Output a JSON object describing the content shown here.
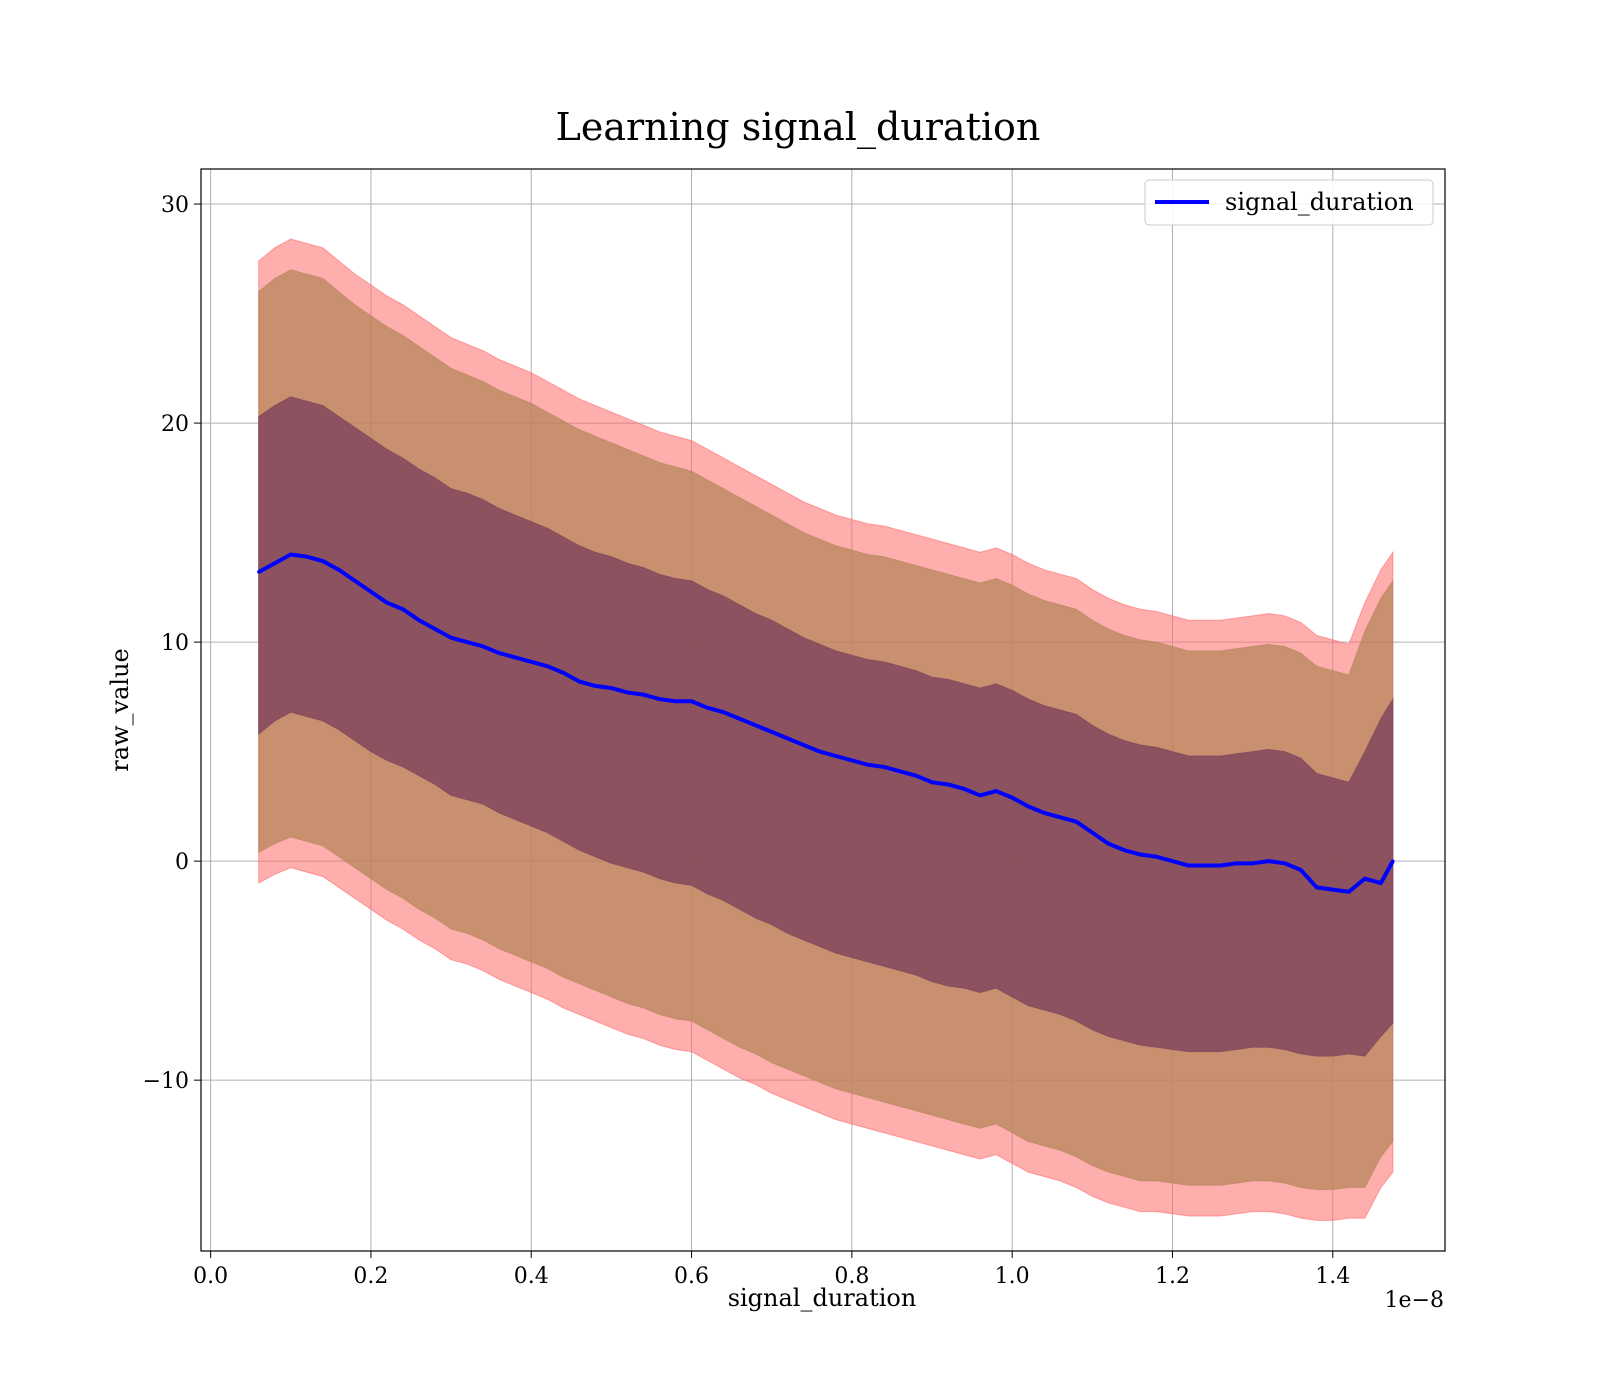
{
  "chart_data": {
    "type": "line",
    "title": "Learning signal_duration",
    "xlabel": "signal_duration",
    "ylabel": "raw_value",
    "x_offset_text": "1e−8",
    "xlim": [
      -0.012,
      1.54
    ],
    "ylim": [
      -17.8,
      31.6
    ],
    "xticks": [
      0.0,
      0.2,
      0.4,
      0.6,
      0.8,
      1.0,
      1.2,
      1.4
    ],
    "xtick_labels": [
      "0.0",
      "0.2",
      "0.4",
      "0.6",
      "0.8",
      "1.0",
      "1.2",
      "1.4"
    ],
    "yticks": [
      -10,
      0,
      10,
      20,
      30
    ],
    "ytick_labels": [
      "−10",
      "0",
      "10",
      "20",
      "30"
    ],
    "grid": true,
    "legend": {
      "location": "upper right",
      "entries": [
        "signal_duration"
      ]
    },
    "colors": {
      "mean_line": "#0000ff",
      "band_outer": "#ff6b6b",
      "band_middle": "#b5865a",
      "band_inner": "#7a3d5a",
      "grid": "#b0b0b0"
    },
    "series": [
      {
        "name": "signal_duration",
        "x": [
          0.06,
          0.08,
          0.1,
          0.12,
          0.14,
          0.16,
          0.18,
          0.2,
          0.22,
          0.24,
          0.26,
          0.28,
          0.3,
          0.32,
          0.34,
          0.36,
          0.38,
          0.4,
          0.42,
          0.44,
          0.46,
          0.48,
          0.5,
          0.52,
          0.54,
          0.56,
          0.58,
          0.6,
          0.62,
          0.64,
          0.66,
          0.68,
          0.7,
          0.72,
          0.74,
          0.76,
          0.78,
          0.8,
          0.82,
          0.84,
          0.86,
          0.88,
          0.9,
          0.92,
          0.94,
          0.96,
          0.98,
          1.0,
          1.02,
          1.04,
          1.06,
          1.08,
          1.1,
          1.12,
          1.14,
          1.16,
          1.18,
          1.2,
          1.22,
          1.24,
          1.26,
          1.28,
          1.3,
          1.32,
          1.34,
          1.36,
          1.38,
          1.4,
          1.42,
          1.44,
          1.46,
          1.475
        ],
        "mean": [
          13.2,
          13.6,
          14.0,
          13.9,
          13.7,
          13.3,
          12.8,
          12.3,
          11.8,
          11.5,
          11.0,
          10.6,
          10.2,
          10.0,
          9.8,
          9.5,
          9.3,
          9.1,
          8.9,
          8.6,
          8.2,
          8.0,
          7.9,
          7.7,
          7.6,
          7.4,
          7.3,
          7.3,
          7.0,
          6.8,
          6.5,
          6.2,
          5.9,
          5.6,
          5.3,
          5.0,
          4.8,
          4.6,
          4.4,
          4.3,
          4.1,
          3.9,
          3.6,
          3.5,
          3.3,
          3.0,
          3.2,
          2.9,
          2.5,
          2.2,
          2.0,
          1.8,
          1.3,
          0.8,
          0.5,
          0.3,
          0.2,
          0.0,
          -0.2,
          -0.2,
          -0.2,
          -0.1,
          -0.1,
          0.0,
          -0.1,
          -0.4,
          -1.2,
          -1.3,
          -1.4,
          -0.8,
          -1.0,
          0.0
        ],
        "band_inner_upper": [
          20.3,
          20.8,
          21.2,
          21.0,
          20.8,
          20.3,
          19.8,
          19.3,
          18.8,
          18.4,
          17.9,
          17.5,
          17.0,
          16.8,
          16.5,
          16.1,
          15.8,
          15.5,
          15.2,
          14.8,
          14.4,
          14.1,
          13.9,
          13.6,
          13.4,
          13.1,
          12.9,
          12.8,
          12.4,
          12.1,
          11.7,
          11.3,
          11.0,
          10.6,
          10.2,
          9.9,
          9.6,
          9.4,
          9.2,
          9.1,
          8.9,
          8.7,
          8.4,
          8.3,
          8.1,
          7.9,
          8.1,
          7.8,
          7.4,
          7.1,
          6.9,
          6.7,
          6.2,
          5.8,
          5.5,
          5.3,
          5.2,
          5.0,
          4.8,
          4.8,
          4.8,
          4.9,
          5.0,
          5.1,
          5.0,
          4.7,
          4.0,
          3.8,
          3.6,
          5.0,
          6.5,
          7.4
        ],
        "band_inner_lower": [
          5.8,
          6.4,
          6.8,
          6.6,
          6.4,
          6.0,
          5.5,
          5.0,
          4.6,
          4.3,
          3.9,
          3.5,
          3.0,
          2.8,
          2.6,
          2.2,
          1.9,
          1.6,
          1.3,
          0.9,
          0.5,
          0.2,
          -0.1,
          -0.3,
          -0.5,
          -0.8,
          -1.0,
          -1.1,
          -1.5,
          -1.8,
          -2.2,
          -2.6,
          -2.9,
          -3.3,
          -3.6,
          -3.9,
          -4.2,
          -4.4,
          -4.6,
          -4.8,
          -5.0,
          -5.2,
          -5.5,
          -5.7,
          -5.8,
          -6.0,
          -5.8,
          -6.2,
          -6.6,
          -6.8,
          -7.0,
          -7.3,
          -7.7,
          -8.0,
          -8.2,
          -8.4,
          -8.5,
          -8.6,
          -8.7,
          -8.7,
          -8.7,
          -8.6,
          -8.5,
          -8.5,
          -8.6,
          -8.8,
          -8.9,
          -8.9,
          -8.8,
          -8.9,
          -8.0,
          -7.4
        ],
        "band_middle_upper": [
          26.0,
          26.6,
          27.0,
          26.8,
          26.6,
          26.0,
          25.4,
          24.9,
          24.4,
          24.0,
          23.5,
          23.0,
          22.5,
          22.2,
          21.9,
          21.5,
          21.2,
          20.9,
          20.5,
          20.1,
          19.7,
          19.4,
          19.1,
          18.8,
          18.5,
          18.2,
          18.0,
          17.8,
          17.4,
          17.0,
          16.6,
          16.2,
          15.8,
          15.4,
          15.0,
          14.7,
          14.4,
          14.2,
          14.0,
          13.9,
          13.7,
          13.5,
          13.3,
          13.1,
          12.9,
          12.7,
          12.9,
          12.6,
          12.2,
          11.9,
          11.7,
          11.5,
          11.0,
          10.6,
          10.3,
          10.1,
          10.0,
          9.8,
          9.6,
          9.6,
          9.6,
          9.7,
          9.8,
          9.9,
          9.8,
          9.5,
          8.9,
          8.7,
          8.5,
          10.5,
          12.0,
          12.8
        ],
        "band_middle_lower": [
          0.4,
          0.8,
          1.1,
          0.9,
          0.7,
          0.2,
          -0.3,
          -0.8,
          -1.3,
          -1.7,
          -2.2,
          -2.6,
          -3.1,
          -3.3,
          -3.6,
          -4.0,
          -4.3,
          -4.6,
          -4.9,
          -5.3,
          -5.6,
          -5.9,
          -6.2,
          -6.5,
          -6.7,
          -7.0,
          -7.2,
          -7.3,
          -7.7,
          -8.1,
          -8.5,
          -8.8,
          -9.2,
          -9.5,
          -9.8,
          -10.1,
          -10.4,
          -10.6,
          -10.8,
          -11.0,
          -11.2,
          -11.4,
          -11.6,
          -11.8,
          -12.0,
          -12.2,
          -12.0,
          -12.4,
          -12.8,
          -13.0,
          -13.2,
          -13.5,
          -13.9,
          -14.2,
          -14.4,
          -14.6,
          -14.6,
          -14.7,
          -14.8,
          -14.8,
          -14.8,
          -14.7,
          -14.6,
          -14.6,
          -14.7,
          -14.9,
          -15.0,
          -15.0,
          -14.9,
          -14.9,
          -13.5,
          -12.8
        ],
        "band_outer_upper": [
          27.4,
          28.0,
          28.4,
          28.2,
          28.0,
          27.4,
          26.8,
          26.3,
          25.8,
          25.4,
          24.9,
          24.4,
          23.9,
          23.6,
          23.3,
          22.9,
          22.6,
          22.3,
          21.9,
          21.5,
          21.1,
          20.8,
          20.5,
          20.2,
          19.9,
          19.6,
          19.4,
          19.2,
          18.8,
          18.4,
          18.0,
          17.6,
          17.2,
          16.8,
          16.4,
          16.1,
          15.8,
          15.6,
          15.4,
          15.3,
          15.1,
          14.9,
          14.7,
          14.5,
          14.3,
          14.1,
          14.3,
          14.0,
          13.6,
          13.3,
          13.1,
          12.9,
          12.4,
          12.0,
          11.7,
          11.5,
          11.4,
          11.2,
          11.0,
          11.0,
          11.0,
          11.1,
          11.2,
          11.3,
          11.2,
          10.9,
          10.3,
          10.1,
          9.9,
          11.8,
          13.3,
          14.1
        ],
        "band_outer_lower": [
          -1.0,
          -0.6,
          -0.3,
          -0.5,
          -0.7,
          -1.2,
          -1.7,
          -2.2,
          -2.7,
          -3.1,
          -3.6,
          -4.0,
          -4.5,
          -4.7,
          -5.0,
          -5.4,
          -5.7,
          -6.0,
          -6.3,
          -6.7,
          -7.0,
          -7.3,
          -7.6,
          -7.9,
          -8.1,
          -8.4,
          -8.6,
          -8.7,
          -9.1,
          -9.5,
          -9.9,
          -10.2,
          -10.6,
          -10.9,
          -11.2,
          -11.5,
          -11.8,
          -12.0,
          -12.2,
          -12.4,
          -12.6,
          -12.8,
          -13.0,
          -13.2,
          -13.4,
          -13.6,
          -13.4,
          -13.8,
          -14.2,
          -14.4,
          -14.6,
          -14.9,
          -15.3,
          -15.6,
          -15.8,
          -16.0,
          -16.0,
          -16.1,
          -16.2,
          -16.2,
          -16.2,
          -16.1,
          -16.0,
          -16.0,
          -16.1,
          -16.3,
          -16.4,
          -16.4,
          -16.3,
          -16.3,
          -14.9,
          -14.2
        ]
      }
    ]
  }
}
